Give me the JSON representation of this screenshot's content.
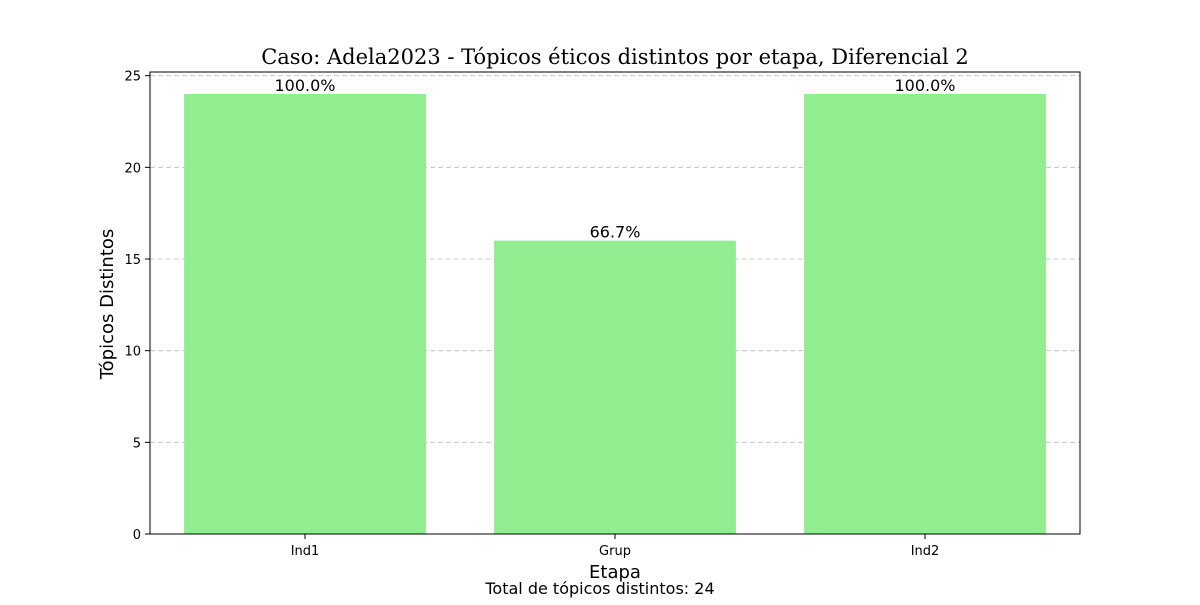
{
  "chart_data": {
    "type": "bar",
    "title": "Caso: Adela2023 - Tópicos éticos distintos por etapa, Diferencial 2",
    "xlabel": "Etapa",
    "ylabel": "Tópicos Distintos",
    "categories": [
      "Ind1",
      "Grup",
      "Ind2"
    ],
    "values": [
      24,
      16,
      24
    ],
    "data_labels": [
      "100.0%",
      "66.7%",
      "100.0%"
    ],
    "ylim": [
      0,
      25.2
    ],
    "yticks": [
      0,
      5,
      10,
      15,
      20,
      25
    ],
    "grid": "y-dashed",
    "bar_color": "#90ee90",
    "grid_color": "#c8c8c8",
    "footnote": "Total de tópicos distintos: 24"
  }
}
